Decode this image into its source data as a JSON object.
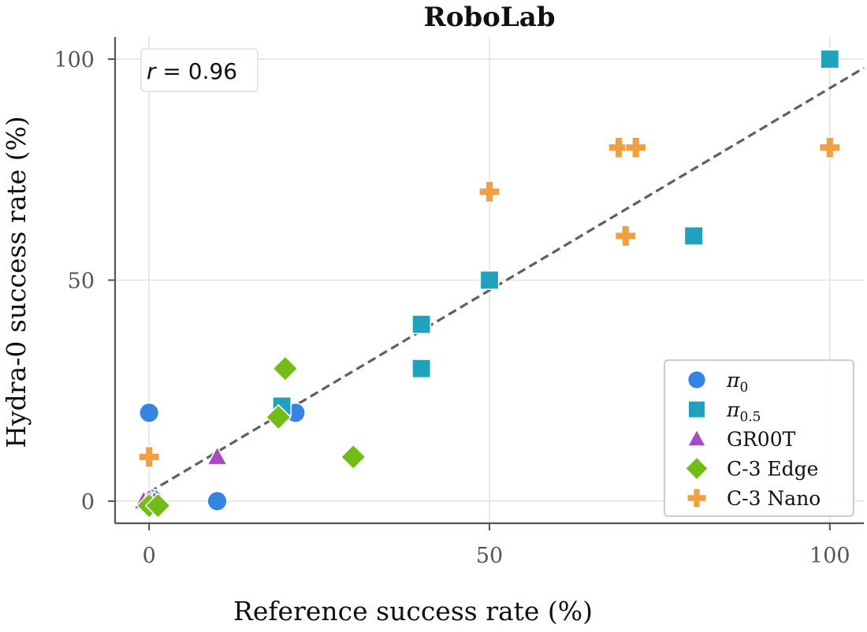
{
  "chart_data": {
    "type": "scatter",
    "title": "RoboLab",
    "xlabel": "Reference success rate (%)",
    "ylabel": "Hydra-0 success rate (%)",
    "xlim": [
      -5,
      105
    ],
    "ylim": [
      -5,
      105
    ],
    "xticks": [
      0,
      50,
      100
    ],
    "yticks": [
      0,
      50,
      100
    ],
    "xtick_labels": [
      "0",
      "50",
      "100"
    ],
    "ytick_labels": [
      "0",
      "50",
      "100"
    ],
    "grid": true,
    "legend_position": "bottom-right",
    "annotation": {
      "prefix": "r",
      "suffix": " = 0.96",
      "position": "top-left"
    },
    "fit_line": {
      "style": "dashed",
      "color": "#606060",
      "start": [
        0,
        2
      ],
      "end": [
        105,
        98
      ]
    },
    "series": [
      {
        "name": "π",
        "name_sub": "0",
        "marker": "circle",
        "color": "#3584e4",
        "points": [
          [
            0,
            20
          ],
          [
            0.5,
            0.5
          ],
          [
            0,
            0
          ],
          [
            10,
            0
          ],
          [
            21.5,
            20
          ]
        ]
      },
      {
        "name": "π",
        "name_sub": "0.5",
        "marker": "square",
        "color": "#1fa2bd",
        "points": [
          [
            100,
            100
          ],
          [
            80,
            60
          ],
          [
            50,
            50
          ],
          [
            40,
            40
          ],
          [
            40,
            30
          ],
          [
            19.5,
            21.5
          ]
        ]
      },
      {
        "name": "GR00T",
        "name_sub": "",
        "marker": "triangle",
        "color": "#a64bc2",
        "points": [
          [
            10,
            10
          ],
          [
            -0.8,
            0
          ],
          [
            0,
            0.5
          ],
          [
            0.8,
            0
          ]
        ]
      },
      {
        "name": "C-3 Edge",
        "name_sub": "",
        "marker": "diamond",
        "color": "#72bc18",
        "points": [
          [
            20,
            30
          ],
          [
            30,
            10
          ],
          [
            19,
            19
          ],
          [
            0,
            -1
          ],
          [
            1.3,
            -1
          ]
        ]
      },
      {
        "name": "C-3 Nano",
        "name_sub": "",
        "marker": "plus",
        "color": "#f0a040",
        "points": [
          [
            0,
            10
          ],
          [
            50,
            70
          ],
          [
            69,
            80
          ],
          [
            71.5,
            80
          ],
          [
            70,
            60
          ],
          [
            100,
            80
          ]
        ]
      }
    ]
  }
}
